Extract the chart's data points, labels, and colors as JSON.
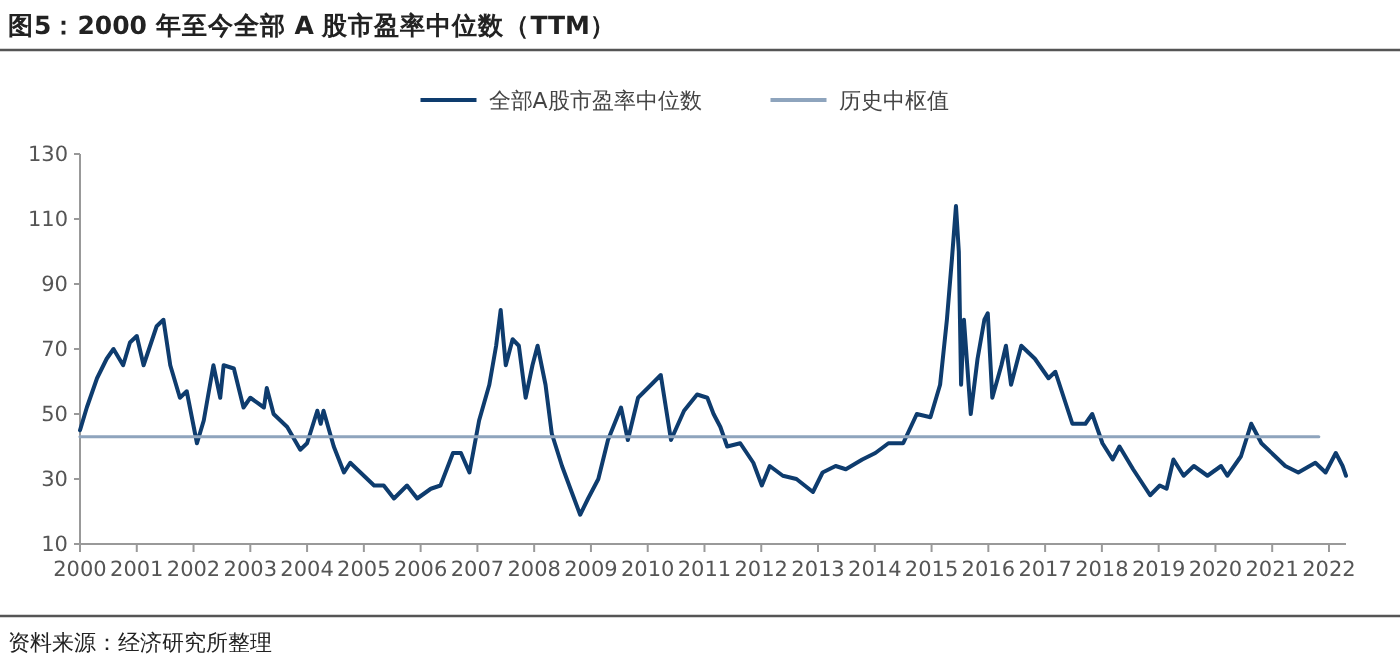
{
  "chart_data": {
    "type": "line",
    "title": "图5：2000 年至今全部 A 股市盈率中位数（TTM）",
    "annotations": [
      "资料来源：经济研究所整理"
    ],
    "xlim": [
      2000,
      2022.3
    ],
    "xticks": [
      2000,
      2001,
      2002,
      2003,
      2004,
      2005,
      2006,
      2007,
      2008,
      2009,
      2010,
      2011,
      2012,
      2013,
      2014,
      2015,
      2016,
      2017,
      2018,
      2019,
      2020,
      2021,
      2022
    ],
    "ylim": [
      10,
      130
    ],
    "yticks": [
      10,
      30,
      50,
      70,
      90,
      110,
      130
    ],
    "grid": false,
    "legend": "top",
    "series": [
      {
        "name": "全部A股市盈率中位数",
        "color": "#0e3c6e",
        "x": [
          2000.0,
          2000.12,
          2000.3,
          2000.47,
          2000.59,
          2000.76,
          2000.88,
          2001.0,
          2001.12,
          2001.35,
          2001.47,
          2001.59,
          2001.76,
          2001.88,
          2002.06,
          2002.18,
          2002.35,
          2002.47,
          2002.53,
          2002.71,
          2002.88,
          2003.0,
          2003.24,
          2003.29,
          2003.41,
          2003.65,
          2003.88,
          2004.0,
          2004.18,
          2004.24,
          2004.29,
          2004.47,
          2004.65,
          2004.76,
          2005.0,
          2005.18,
          2005.35,
          2005.53,
          2005.76,
          2005.94,
          2006.18,
          2006.35,
          2006.57,
          2006.71,
          2006.86,
          2007.03,
          2007.21,
          2007.33,
          2007.41,
          2007.5,
          2007.62,
          2007.73,
          2007.85,
          2007.97,
          2008.06,
          2008.2,
          2008.31,
          2008.49,
          2008.66,
          2008.81,
          2008.95,
          2009.13,
          2009.3,
          2009.53,
          2009.65,
          2009.83,
          2010.06,
          2010.23,
          2010.41,
          2010.64,
          2010.87,
          2011.05,
          2011.16,
          2011.28,
          2011.4,
          2011.63,
          2011.86,
          2012.01,
          2012.15,
          2012.38,
          2012.62,
          2012.91,
          2013.08,
          2013.31,
          2013.49,
          2013.78,
          2014.01,
          2014.24,
          2014.5,
          2014.74,
          2014.98,
          2015.15,
          2015.27,
          2015.36,
          2015.43,
          2015.48,
          2015.52,
          2015.57,
          2015.69,
          2015.81,
          2015.93,
          2015.99,
          2016.07,
          2016.23,
          2016.31,
          2016.4,
          2016.58,
          2016.82,
          2017.06,
          2017.18,
          2017.48,
          2017.71,
          2017.83,
          2018.01,
          2018.19,
          2018.31,
          2018.55,
          2018.85,
          2019.02,
          2019.14,
          2019.26,
          2019.44,
          2019.62,
          2019.86,
          2020.1,
          2020.21,
          2020.45,
          2020.63,
          2020.81,
          2021.05,
          2021.23,
          2021.46,
          2021.76,
          2021.94,
          2022.12,
          2022.24,
          2022.3
        ],
        "values": [
          45,
          52,
          61,
          67,
          70,
          65,
          72,
          74,
          65,
          77,
          79,
          65,
          55,
          57,
          41,
          48,
          65,
          55,
          65,
          64,
          52,
          55,
          52,
          58,
          50,
          46,
          39,
          41,
          51,
          47,
          51,
          40,
          32,
          35,
          31,
          28,
          28,
          24,
          28,
          24,
          27,
          28,
          38,
          38,
          32,
          48,
          59,
          71,
          82,
          65,
          73,
          71,
          55,
          65,
          71,
          59,
          44,
          34,
          26,
          19,
          24,
          30,
          42,
          52,
          42,
          55,
          59,
          62,
          42,
          51,
          56,
          55,
          50,
          46,
          40,
          41,
          35,
          28,
          34,
          31,
          30,
          26,
          32,
          34,
          33,
          36,
          38,
          41,
          41,
          50,
          49,
          59,
          79,
          98,
          114,
          100,
          59,
          79,
          50,
          67,
          79,
          81,
          55,
          65,
          71,
          59,
          71,
          67,
          61,
          63,
          47,
          47,
          50,
          41,
          36,
          40,
          33,
          25,
          28,
          27,
          36,
          31,
          34,
          31,
          34,
          31,
          37,
          47,
          41,
          37,
          34,
          32,
          35,
          32,
          38,
          34,
          31
        ]
      },
      {
        "name": "历史中枢值",
        "color": "#8ea4bd",
        "x": [
          2000,
          2021.82
        ],
        "values": [
          43,
          43
        ]
      }
    ]
  }
}
